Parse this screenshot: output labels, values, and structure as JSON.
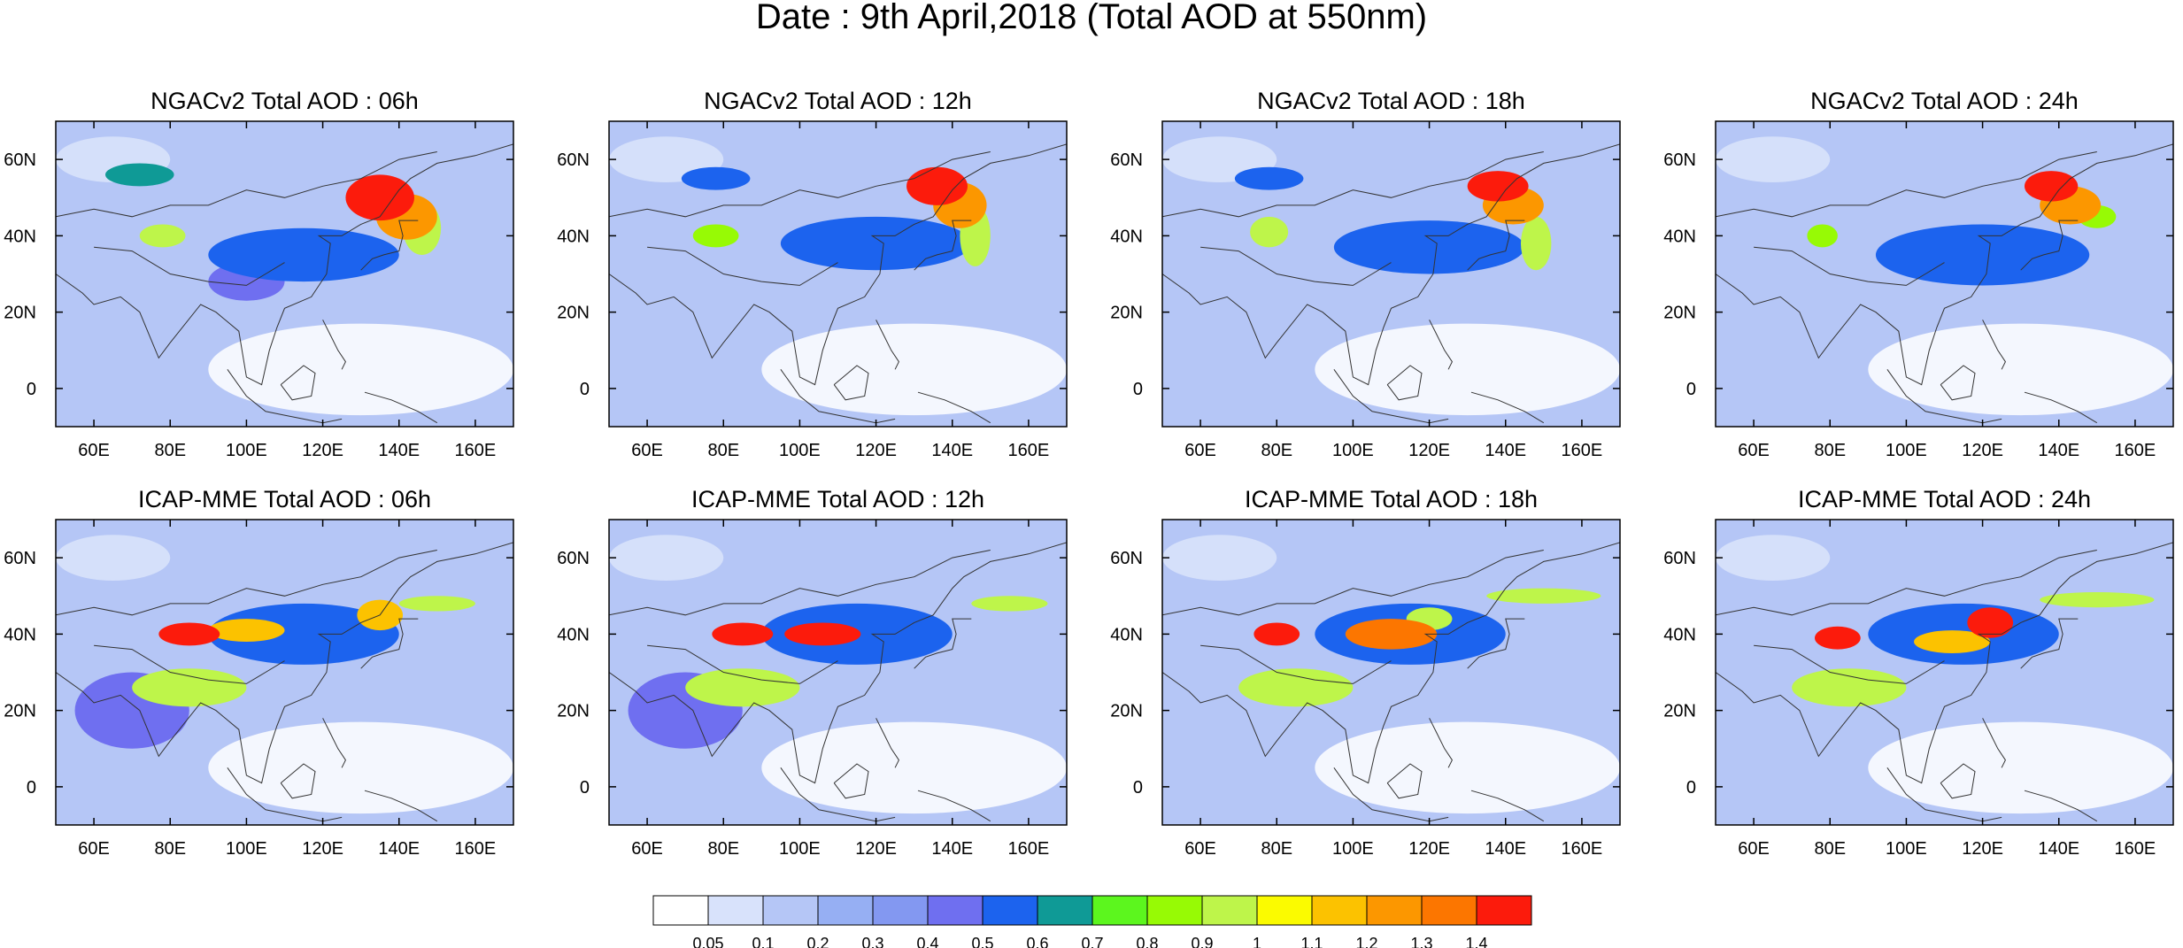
{
  "figure": {
    "title": "Date : 9th April,2018 (Total AOD at 550nm)"
  },
  "axes": {
    "lon_ticks": [
      "60E",
      "80E",
      "100E",
      "120E",
      "140E",
      "160E"
    ],
    "lat_ticks": [
      "60N",
      "40N",
      "20N",
      "0"
    ],
    "lon_range": [
      50,
      170
    ],
    "lat_range": [
      -10,
      70
    ]
  },
  "colorbar": {
    "labels": [
      "0.05",
      "0.1",
      "0.2",
      "0.3",
      "0.4",
      "0.5",
      "0.6",
      "0.7",
      "0.8",
      "0.9",
      "1",
      "1.1",
      "1.2",
      "1.3",
      "1.4"
    ],
    "colors": [
      "#ffffff",
      "#d8e2fb",
      "#b5c6f6",
      "#96aff3",
      "#8398f1",
      "#6f6ff0",
      "#1c63ee",
      "#0f9a96",
      "#5cf61e",
      "#97fa05",
      "#bef54a",
      "#fbfb00",
      "#fcc200",
      "#fc9700",
      "#fc7600",
      "#fc1b0c"
    ]
  },
  "chart_data": [
    {
      "type": "heatmap",
      "title": "NGACv2 Total AOD : 06h",
      "model": "NGACv2",
      "forecast_hour": "06h",
      "background": "#b5c6f6",
      "xlim": [
        50,
        170
      ],
      "ylim": [
        -10,
        70
      ],
      "features": [
        {
          "lon": 135,
          "lat": 50,
          "rlon": 9,
          "rlat": 6,
          "aod": 1.4
        },
        {
          "lon": 142,
          "lat": 45,
          "rlon": 8,
          "rlat": 6,
          "aod": 1.2
        },
        {
          "lon": 146,
          "lat": 42,
          "rlon": 5,
          "rlat": 7,
          "aod": 0.9
        },
        {
          "lon": 78,
          "lat": 40,
          "rlon": 6,
          "rlat": 3,
          "aod": 0.9
        },
        {
          "lon": 72,
          "lat": 56,
          "rlon": 9,
          "rlat": 3,
          "aod": 0.6
        },
        {
          "lon": 115,
          "lat": 35,
          "rlon": 25,
          "rlat": 7,
          "aod": 0.5
        },
        {
          "lon": 100,
          "lat": 28,
          "rlon": 10,
          "rlat": 5,
          "aod": 0.4
        }
      ]
    },
    {
      "type": "heatmap",
      "title": "NGACv2 Total AOD : 12h",
      "model": "NGACv2",
      "forecast_hour": "12h",
      "background": "#b5c6f6",
      "xlim": [
        50,
        170
      ],
      "ylim": [
        -10,
        70
      ],
      "features": [
        {
          "lon": 136,
          "lat": 53,
          "rlon": 8,
          "rlat": 5,
          "aod": 1.4
        },
        {
          "lon": 142,
          "lat": 48,
          "rlon": 7,
          "rlat": 6,
          "aod": 1.2
        },
        {
          "lon": 146,
          "lat": 40,
          "rlon": 4,
          "rlat": 8,
          "aod": 0.9
        },
        {
          "lon": 78,
          "lat": 40,
          "rlon": 6,
          "rlat": 3,
          "aod": 0.8
        },
        {
          "lon": 78,
          "lat": 55,
          "rlon": 9,
          "rlat": 3,
          "aod": 0.5
        },
        {
          "lon": 120,
          "lat": 38,
          "rlon": 25,
          "rlat": 7,
          "aod": 0.5
        }
      ]
    },
    {
      "type": "heatmap",
      "title": "NGACv2 Total AOD : 18h",
      "model": "NGACv2",
      "forecast_hour": "18h",
      "background": "#b5c6f6",
      "xlim": [
        50,
        170
      ],
      "ylim": [
        -10,
        70
      ],
      "features": [
        {
          "lon": 138,
          "lat": 53,
          "rlon": 8,
          "rlat": 4,
          "aod": 1.4
        },
        {
          "lon": 142,
          "lat": 48,
          "rlon": 8,
          "rlat": 5,
          "aod": 1.2
        },
        {
          "lon": 148,
          "lat": 38,
          "rlon": 4,
          "rlat": 7,
          "aod": 0.9
        },
        {
          "lon": 78,
          "lat": 41,
          "rlon": 5,
          "rlat": 4,
          "aod": 0.9
        },
        {
          "lon": 78,
          "lat": 55,
          "rlon": 9,
          "rlat": 3,
          "aod": 0.5
        },
        {
          "lon": 120,
          "lat": 37,
          "rlon": 25,
          "rlat": 7,
          "aod": 0.5
        }
      ]
    },
    {
      "type": "heatmap",
      "title": "NGACv2 Total AOD : 24h",
      "model": "NGACv2",
      "forecast_hour": "24h",
      "background": "#b5c6f6",
      "xlim": [
        50,
        170
      ],
      "ylim": [
        -10,
        70
      ],
      "features": [
        {
          "lon": 138,
          "lat": 53,
          "rlon": 7,
          "rlat": 4,
          "aod": 1.4
        },
        {
          "lon": 143,
          "lat": 48,
          "rlon": 8,
          "rlat": 5,
          "aod": 1.2
        },
        {
          "lon": 150,
          "lat": 45,
          "rlon": 5,
          "rlat": 3,
          "aod": 0.8
        },
        {
          "lon": 78,
          "lat": 40,
          "rlon": 4,
          "rlat": 3,
          "aod": 0.8
        },
        {
          "lon": 120,
          "lat": 35,
          "rlon": 28,
          "rlat": 8,
          "aod": 0.5
        }
      ]
    },
    {
      "type": "heatmap",
      "title": "ICAP-MME Total AOD : 06h",
      "model": "ICAP-MME",
      "forecast_hour": "06h",
      "background": "#b5c6f6",
      "xlim": [
        50,
        170
      ],
      "ylim": [
        -10,
        70
      ],
      "features": [
        {
          "lon": 85,
          "lat": 40,
          "rlon": 8,
          "rlat": 3,
          "aod": 1.4
        },
        {
          "lon": 100,
          "lat": 41,
          "rlon": 10,
          "rlat": 3,
          "aod": 1.1
        },
        {
          "lon": 85,
          "lat": 26,
          "rlon": 15,
          "rlat": 5,
          "aod": 0.9
        },
        {
          "lon": 135,
          "lat": 45,
          "rlon": 6,
          "rlat": 4,
          "aod": 1.1
        },
        {
          "lon": 150,
          "lat": 48,
          "rlon": 10,
          "rlat": 2,
          "aod": 0.9
        },
        {
          "lon": 115,
          "lat": 40,
          "rlon": 25,
          "rlat": 8,
          "aod": 0.5
        },
        {
          "lon": 70,
          "lat": 20,
          "rlon": 15,
          "rlat": 10,
          "aod": 0.4
        }
      ]
    },
    {
      "type": "heatmap",
      "title": "ICAP-MME Total AOD : 12h",
      "model": "ICAP-MME",
      "forecast_hour": "12h",
      "background": "#b5c6f6",
      "xlim": [
        50,
        170
      ],
      "ylim": [
        -10,
        70
      ],
      "features": [
        {
          "lon": 85,
          "lat": 40,
          "rlon": 8,
          "rlat": 3,
          "aod": 1.4
        },
        {
          "lon": 106,
          "lat": 40,
          "rlon": 10,
          "rlat": 3,
          "aod": 1.4
        },
        {
          "lon": 85,
          "lat": 26,
          "rlon": 15,
          "rlat": 5,
          "aod": 0.9
        },
        {
          "lon": 155,
          "lat": 48,
          "rlon": 10,
          "rlat": 2,
          "aod": 0.9
        },
        {
          "lon": 115,
          "lat": 40,
          "rlon": 25,
          "rlat": 8,
          "aod": 0.5
        },
        {
          "lon": 70,
          "lat": 20,
          "rlon": 15,
          "rlat": 10,
          "aod": 0.4
        }
      ]
    },
    {
      "type": "heatmap",
      "title": "ICAP-MME Total AOD : 18h",
      "model": "ICAP-MME",
      "forecast_hour": "18h",
      "background": "#b5c6f6",
      "xlim": [
        50,
        170
      ],
      "ylim": [
        -10,
        70
      ],
      "features": [
        {
          "lon": 80,
          "lat": 40,
          "rlon": 6,
          "rlat": 3,
          "aod": 1.4
        },
        {
          "lon": 110,
          "lat": 40,
          "rlon": 12,
          "rlat": 4,
          "aod": 1.3
        },
        {
          "lon": 120,
          "lat": 44,
          "rlon": 6,
          "rlat": 3,
          "aod": 0.9
        },
        {
          "lon": 85,
          "lat": 26,
          "rlon": 15,
          "rlat": 5,
          "aod": 0.9
        },
        {
          "lon": 150,
          "lat": 50,
          "rlon": 15,
          "rlat": 2,
          "aod": 0.9
        },
        {
          "lon": 115,
          "lat": 40,
          "rlon": 25,
          "rlat": 8,
          "aod": 0.5
        }
      ]
    },
    {
      "type": "heatmap",
      "title": "ICAP-MME Total AOD : 24h",
      "model": "ICAP-MME",
      "forecast_hour": "24h",
      "background": "#b5c6f6",
      "xlim": [
        50,
        170
      ],
      "ylim": [
        -10,
        70
      ],
      "features": [
        {
          "lon": 82,
          "lat": 39,
          "rlon": 6,
          "rlat": 3,
          "aod": 1.4
        },
        {
          "lon": 122,
          "lat": 43,
          "rlon": 6,
          "rlat": 4,
          "aod": 1.4
        },
        {
          "lon": 112,
          "lat": 38,
          "rlon": 10,
          "rlat": 3,
          "aod": 1.1
        },
        {
          "lon": 85,
          "lat": 26,
          "rlon": 15,
          "rlat": 5,
          "aod": 0.9
        },
        {
          "lon": 150,
          "lat": 49,
          "rlon": 15,
          "rlat": 2,
          "aod": 0.9
        },
        {
          "lon": 115,
          "lat": 40,
          "rlon": 25,
          "rlat": 8,
          "aod": 0.5
        }
      ]
    }
  ]
}
